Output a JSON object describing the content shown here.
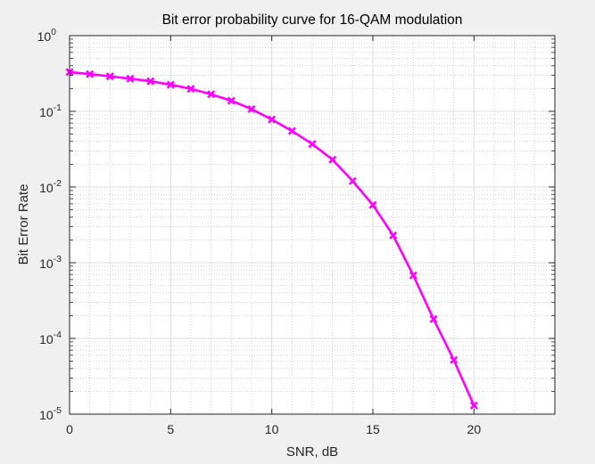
{
  "chart_data": {
    "type": "line",
    "title": "Bit error probability curve for 16-QAM modulation",
    "xlabel": "SNR, dB",
    "ylabel": "Bit Error Rate",
    "xlim": [
      0,
      24
    ],
    "ylim": [
      1e-05,
      1
    ],
    "yscale": "log",
    "grid": true,
    "minor_grid": true,
    "xticks": [
      0,
      5,
      10,
      15,
      20
    ],
    "yticks": [
      {
        "mantissa": "10",
        "exponent": "0",
        "value": 1
      },
      {
        "mantissa": "10",
        "exponent": "-1",
        "value": 0.1
      },
      {
        "mantissa": "10",
        "exponent": "-2",
        "value": 0.01
      },
      {
        "mantissa": "10",
        "exponent": "-3",
        "value": 0.001
      },
      {
        "mantissa": "10",
        "exponent": "-4",
        "value": 0.0001
      },
      {
        "mantissa": "10",
        "exponent": "-5",
        "value": 1e-05
      }
    ],
    "series": [
      {
        "color": "#ff00ff",
        "marker": "x",
        "x": [
          0,
          1,
          2,
          3,
          4,
          5,
          6,
          7,
          8,
          9,
          10,
          11,
          12,
          13,
          14,
          15,
          16,
          17,
          18,
          19,
          20
        ],
        "y": [
          0.33,
          0.31,
          0.29,
          0.27,
          0.25,
          0.225,
          0.198,
          0.168,
          0.138,
          0.107,
          0.078,
          0.055,
          0.037,
          0.023,
          0.012,
          0.0058,
          0.0023,
          0.00068,
          0.00018,
          5.2e-05,
          1.3e-05
        ]
      }
    ]
  }
}
